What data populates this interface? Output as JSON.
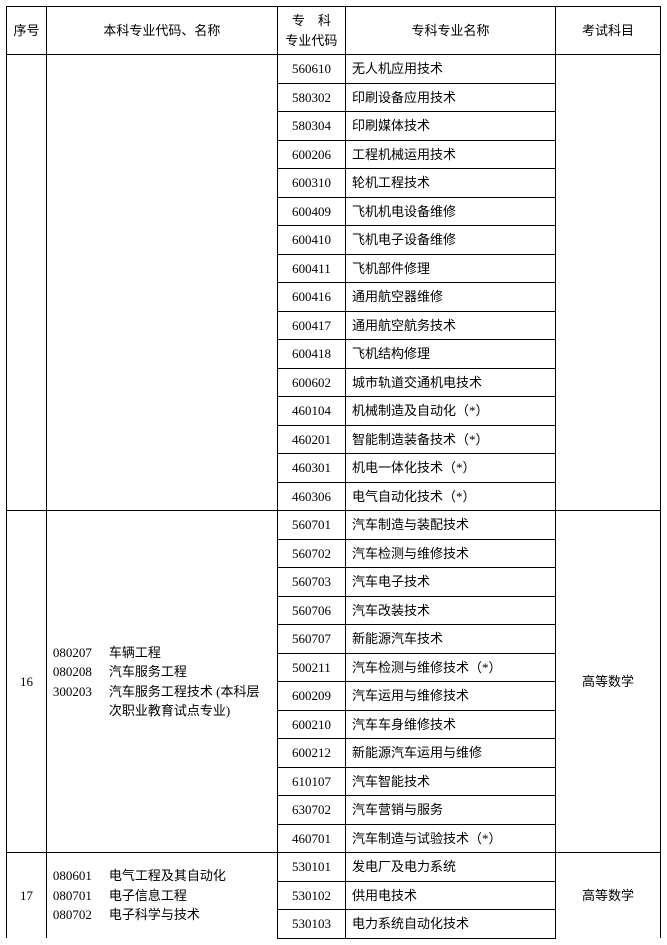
{
  "headers": {
    "seq": "序号",
    "bk": "本科专业代码、名称",
    "zk_code_l1": "专　科",
    "zk_code_l2": "专业代码",
    "zk_name": "专科专业名称",
    "exam": "考试科目"
  },
  "group15": {
    "rows": [
      {
        "code": "560610",
        "name": "无人机应用技术"
      },
      {
        "code": "580302",
        "name": "印刷设备应用技术"
      },
      {
        "code": "580304",
        "name": "印刷媒体技术"
      },
      {
        "code": "600206",
        "name": "工程机械运用技术"
      },
      {
        "code": "600310",
        "name": "轮机工程技术"
      },
      {
        "code": "600409",
        "name": "飞机机电设备维修"
      },
      {
        "code": "600410",
        "name": "飞机电子设备维修"
      },
      {
        "code": "600411",
        "name": "飞机部件修理"
      },
      {
        "code": "600416",
        "name": "通用航空器维修"
      },
      {
        "code": "600417",
        "name": "通用航空航务技术"
      },
      {
        "code": "600418",
        "name": "飞机结构修理"
      },
      {
        "code": "600602",
        "name": "城市轨道交通机电技术"
      },
      {
        "code": "460104",
        "name": "机械制造及自动化（*）"
      },
      {
        "code": "460201",
        "name": "智能制造装备技术（*）"
      },
      {
        "code": "460301",
        "name": "机电一体化技术（*）"
      },
      {
        "code": "460306",
        "name": "电气自动化技术（*）"
      }
    ]
  },
  "group16": {
    "seq": "16",
    "bk": [
      {
        "code": "080207",
        "name": "车辆工程"
      },
      {
        "code": "080208",
        "name": "汽车服务工程"
      },
      {
        "code": "300203",
        "name": "汽车服务工程技术 (本科层次职业教育试点专业)"
      }
    ],
    "exam": "高等数学",
    "rows": [
      {
        "code": "560701",
        "name": "汽车制造与装配技术"
      },
      {
        "code": "560702",
        "name": "汽车检测与维修技术"
      },
      {
        "code": "560703",
        "name": "汽车电子技术"
      },
      {
        "code": "560706",
        "name": "汽车改装技术"
      },
      {
        "code": "560707",
        "name": "新能源汽车技术"
      },
      {
        "code": "500211",
        "name": "汽车检测与维修技术（*）"
      },
      {
        "code": "600209",
        "name": "汽车运用与维修技术"
      },
      {
        "code": "600210",
        "name": "汽车车身维修技术"
      },
      {
        "code": "600212",
        "name": "新能源汽车运用与维修"
      },
      {
        "code": "610107",
        "name": "汽车智能技术"
      },
      {
        "code": "630702",
        "name": "汽车营销与服务"
      },
      {
        "code": "460701",
        "name": "汽车制造与试验技术（*）"
      }
    ]
  },
  "group17": {
    "seq": "17",
    "bk": [
      {
        "code": "080601",
        "name": "电气工程及其自动化"
      },
      {
        "code": "080701",
        "name": "电子信息工程"
      },
      {
        "code": "080702",
        "name": "电子科学与技术"
      }
    ],
    "exam": "高等数学",
    "rows": [
      {
        "code": "530101",
        "name": "发电厂及电力系统"
      },
      {
        "code": "530102",
        "name": "供用电技术"
      },
      {
        "code": "530103",
        "name": "电力系统自动化技术"
      }
    ]
  }
}
